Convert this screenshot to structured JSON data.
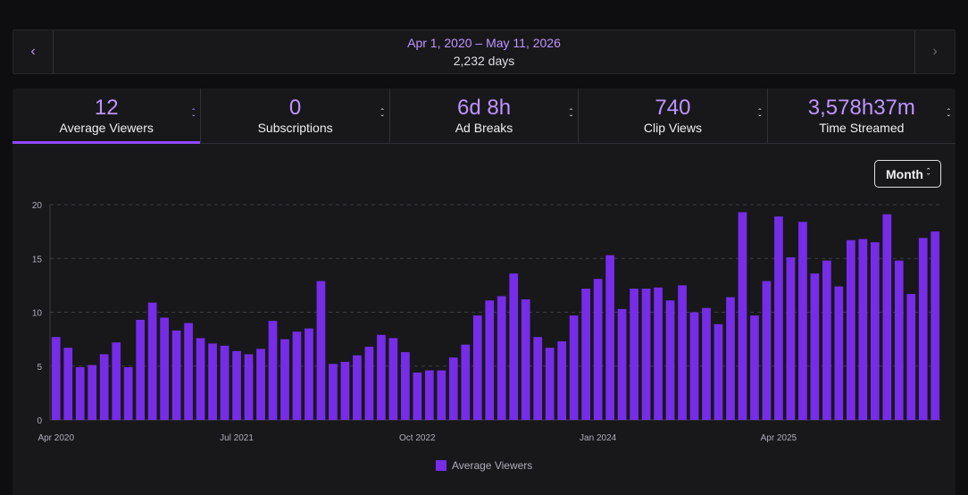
{
  "date_range": {
    "prev_icon": "chevron-left-icon",
    "next_icon": "chevron-right-icon",
    "range": "Apr 1, 2020 – May 11, 2026",
    "days": "2,232 days"
  },
  "stats": [
    {
      "value": "12",
      "label": "Average Viewers",
      "active": true
    },
    {
      "value": "0",
      "label": "Subscriptions",
      "active": false
    },
    {
      "value": "6d 8h",
      "label": "Ad Breaks",
      "active": false
    },
    {
      "value": "740",
      "label": "Clip Views",
      "active": false
    },
    {
      "value": "3,578h37m",
      "label": "Time Streamed",
      "active": false
    }
  ],
  "granularity": {
    "selected": "Month"
  },
  "colors": {
    "accent": "#9147ff",
    "bar": "#772ce8",
    "accent_text": "#bf94ff"
  },
  "chart_data": {
    "type": "bar",
    "ylim": [
      0,
      20
    ],
    "y_ticks": [
      "0",
      "5",
      "10",
      "15",
      "20"
    ],
    "grid": true,
    "x_tick_labels": [
      {
        "index": 0,
        "label": "Apr 2020"
      },
      {
        "index": 15,
        "label": "Jul 2021"
      },
      {
        "index": 30,
        "label": "Oct 2022"
      },
      {
        "index": 45,
        "label": "Jan 2024"
      },
      {
        "index": 60,
        "label": "Apr 2025"
      }
    ],
    "series": [
      {
        "name": "Average Viewers",
        "values": [
          7.7,
          6.7,
          4.9,
          5.1,
          6.1,
          7.2,
          4.9,
          9.3,
          10.9,
          9.5,
          8.3,
          9.0,
          7.6,
          7.1,
          6.9,
          6.4,
          6.1,
          6.6,
          9.2,
          7.5,
          8.2,
          8.5,
          12.9,
          5.2,
          5.4,
          6.0,
          6.8,
          7.9,
          7.6,
          6.3,
          4.4,
          4.6,
          4.6,
          5.8,
          7.0,
          9.7,
          11.1,
          11.5,
          13.6,
          11.2,
          7.7,
          6.7,
          7.3,
          9.7,
          12.2,
          13.1,
          15.3,
          10.3,
          12.2,
          12.2,
          12.3,
          11.1,
          12.5,
          10.0,
          10.4,
          8.9,
          11.4,
          19.3,
          9.7,
          12.9,
          18.9,
          15.1,
          18.4,
          13.6,
          14.8,
          12.4,
          16.7,
          16.8,
          16.5,
          19.1,
          14.8,
          11.7,
          16.9,
          17.5
        ]
      }
    ]
  }
}
